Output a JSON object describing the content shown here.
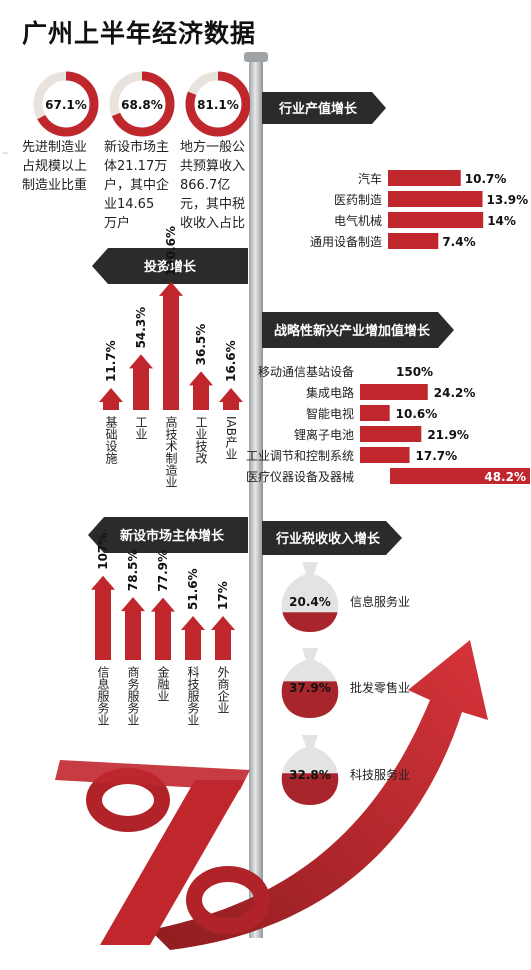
{
  "title": "广州上半年经济数据",
  "rings": [
    {
      "value": 67.1,
      "label": "67.1%",
      "desc": [
        "先进制造业",
        "占规模以上",
        "制造业比重"
      ]
    },
    {
      "value": 68.8,
      "label": "68.8%",
      "desc": [
        "新设市场主",
        "体21.17万",
        "户，其中企",
        "业14.65",
        "万户"
      ]
    },
    {
      "value": 81.1,
      "label": "81.1%",
      "desc": [
        "地方一般公",
        "共预算收入",
        "866.7亿",
        "元，其中税",
        "收收入占比"
      ]
    }
  ],
  "signs": {
    "industry_output": "行业产值增长",
    "investment": "投资增长",
    "emerging": "战略性新兴产业增加值增长",
    "market": "新设市场主体增长",
    "tax": "行业税收收入增长"
  },
  "chart_data": [
    {
      "type": "bar",
      "orientation": "horizontal",
      "title": "行业产值增长",
      "categories": [
        "汽车",
        "医药制造",
        "电气机械",
        "通用设备制造"
      ],
      "values": [
        10.7,
        13.9,
        14,
        7.4
      ],
      "labels": [
        "10.7%",
        "13.9%",
        "14%",
        "7.4%"
      ]
    },
    {
      "type": "bar",
      "orientation": "vertical",
      "title": "投资增长",
      "categories": [
        "基础设施",
        "工业",
        "高技术制造业",
        "工业技改",
        "IAB产业"
      ],
      "values": [
        11.7,
        54.3,
        130.6,
        36.5,
        16.6
      ],
      "labels": [
        "11.7%",
        "54.3%",
        "130.6%",
        "36.5%",
        "16.6%"
      ]
    },
    {
      "type": "bar",
      "orientation": "horizontal",
      "title": "战略性新兴产业增加值增长",
      "categories": [
        "移动通信基站设备",
        "集成电路",
        "智能电视",
        "锂离子电池",
        "工业调节和控制系统",
        "医疗仪器设备及器械"
      ],
      "values": [
        150,
        24.2,
        10.6,
        21.9,
        17.7,
        48.2
      ],
      "labels": [
        "150%",
        "24.2%",
        "10.6%",
        "21.9%",
        "17.7%",
        "48.2%"
      ]
    },
    {
      "type": "bar",
      "orientation": "vertical",
      "title": "新设市场主体增长",
      "categories": [
        "信息服务业",
        "商务服务业",
        "金融业",
        "科技服务业",
        "外商企业"
      ],
      "values": [
        107,
        78.5,
        77.9,
        51.6,
        17
      ],
      "labels": [
        "107%",
        "78.5%",
        "77.9%",
        "51.6%",
        "17%"
      ]
    },
    {
      "type": "bar",
      "title": "行业税收收入增长",
      "categories": [
        "信息服务业",
        "批发零售业",
        "科技服务业"
      ],
      "values": [
        20.4,
        37.9,
        32.8
      ],
      "labels": [
        "20.4%",
        "37.9%",
        "32.8%"
      ]
    }
  ],
  "colors": {
    "red": "#c0272d",
    "dark": "#2b2b2b",
    "pole": "#bfc3c4",
    "ring_bg": "#e8e3dc"
  }
}
